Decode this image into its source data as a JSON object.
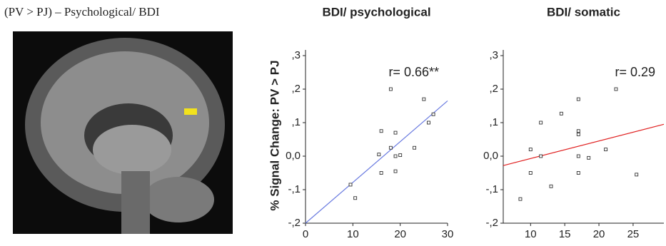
{
  "panel_label": "(PV > PJ) – Psychological/ BDI",
  "chart_data": [
    {
      "type": "scatter",
      "title": "BDI/ psychological",
      "ylabel": "% Signal Change: PV > PJ",
      "annotation": "r= 0.66**",
      "xlim": [
        0,
        30
      ],
      "ylim": [
        -0.2,
        0.3
      ],
      "xticks": [
        0,
        10,
        20,
        30
      ],
      "yticks": [
        {
          "value": -0.2,
          "label": "-,2"
        },
        {
          "value": -0.1,
          "label": "-,1"
        },
        {
          "value": 0,
          "label": "0,0"
        },
        {
          "value": 0.1,
          "label": ",1"
        },
        {
          "value": 0.2,
          "label": ",2"
        },
        {
          "value": 0.3,
          "label": ",3"
        }
      ],
      "x": [
        9.5,
        10.5,
        15.5,
        16,
        16,
        18,
        18,
        19,
        19,
        19,
        20,
        23,
        25,
        26,
        27
      ],
      "values": [
        -0.085,
        -0.125,
        0.005,
        0.075,
        -0.05,
        0.025,
        0.2,
        0.07,
        0,
        -0.045,
        0.003,
        0.025,
        0.17,
        0.1,
        0.125
      ],
      "color": "#333333",
      "fit": {
        "x": [
          0,
          30
        ],
        "y": [
          -0.2,
          0.165
        ],
        "color": "#6a7be0"
      }
    },
    {
      "type": "scatter",
      "title": "BDI/ somatic",
      "annotation": "r= 0.29",
      "xlim": [
        6,
        29.5
      ],
      "ylim": [
        -0.2,
        0.3
      ],
      "xticks": [
        10,
        15,
        20,
        25
      ],
      "yticks": [
        {
          "value": -0.2,
          "label": "-,2"
        },
        {
          "value": -0.1,
          "label": "-,1"
        },
        {
          "value": 0,
          "label": "0,0"
        },
        {
          "value": 0.1,
          "label": ",1"
        },
        {
          "value": 0.2,
          "label": ",2"
        },
        {
          "value": 0.3,
          "label": ",3"
        }
      ],
      "x": [
        8.5,
        10,
        10,
        11.5,
        11.5,
        13,
        14.5,
        17,
        17,
        17,
        17,
        17,
        18.5,
        21,
        22.5,
        25.5
      ],
      "values": [
        -0.128,
        0.02,
        -0.05,
        0.1,
        0,
        -0.09,
        0.127,
        0.17,
        0.075,
        0.065,
        0,
        -0.05,
        -0.005,
        0.02,
        0.2,
        -0.055
      ],
      "color": "#333333",
      "fit": {
        "x": [
          6,
          29.5
        ],
        "y": [
          -0.028,
          0.095
        ],
        "color": "#e02020"
      }
    }
  ]
}
